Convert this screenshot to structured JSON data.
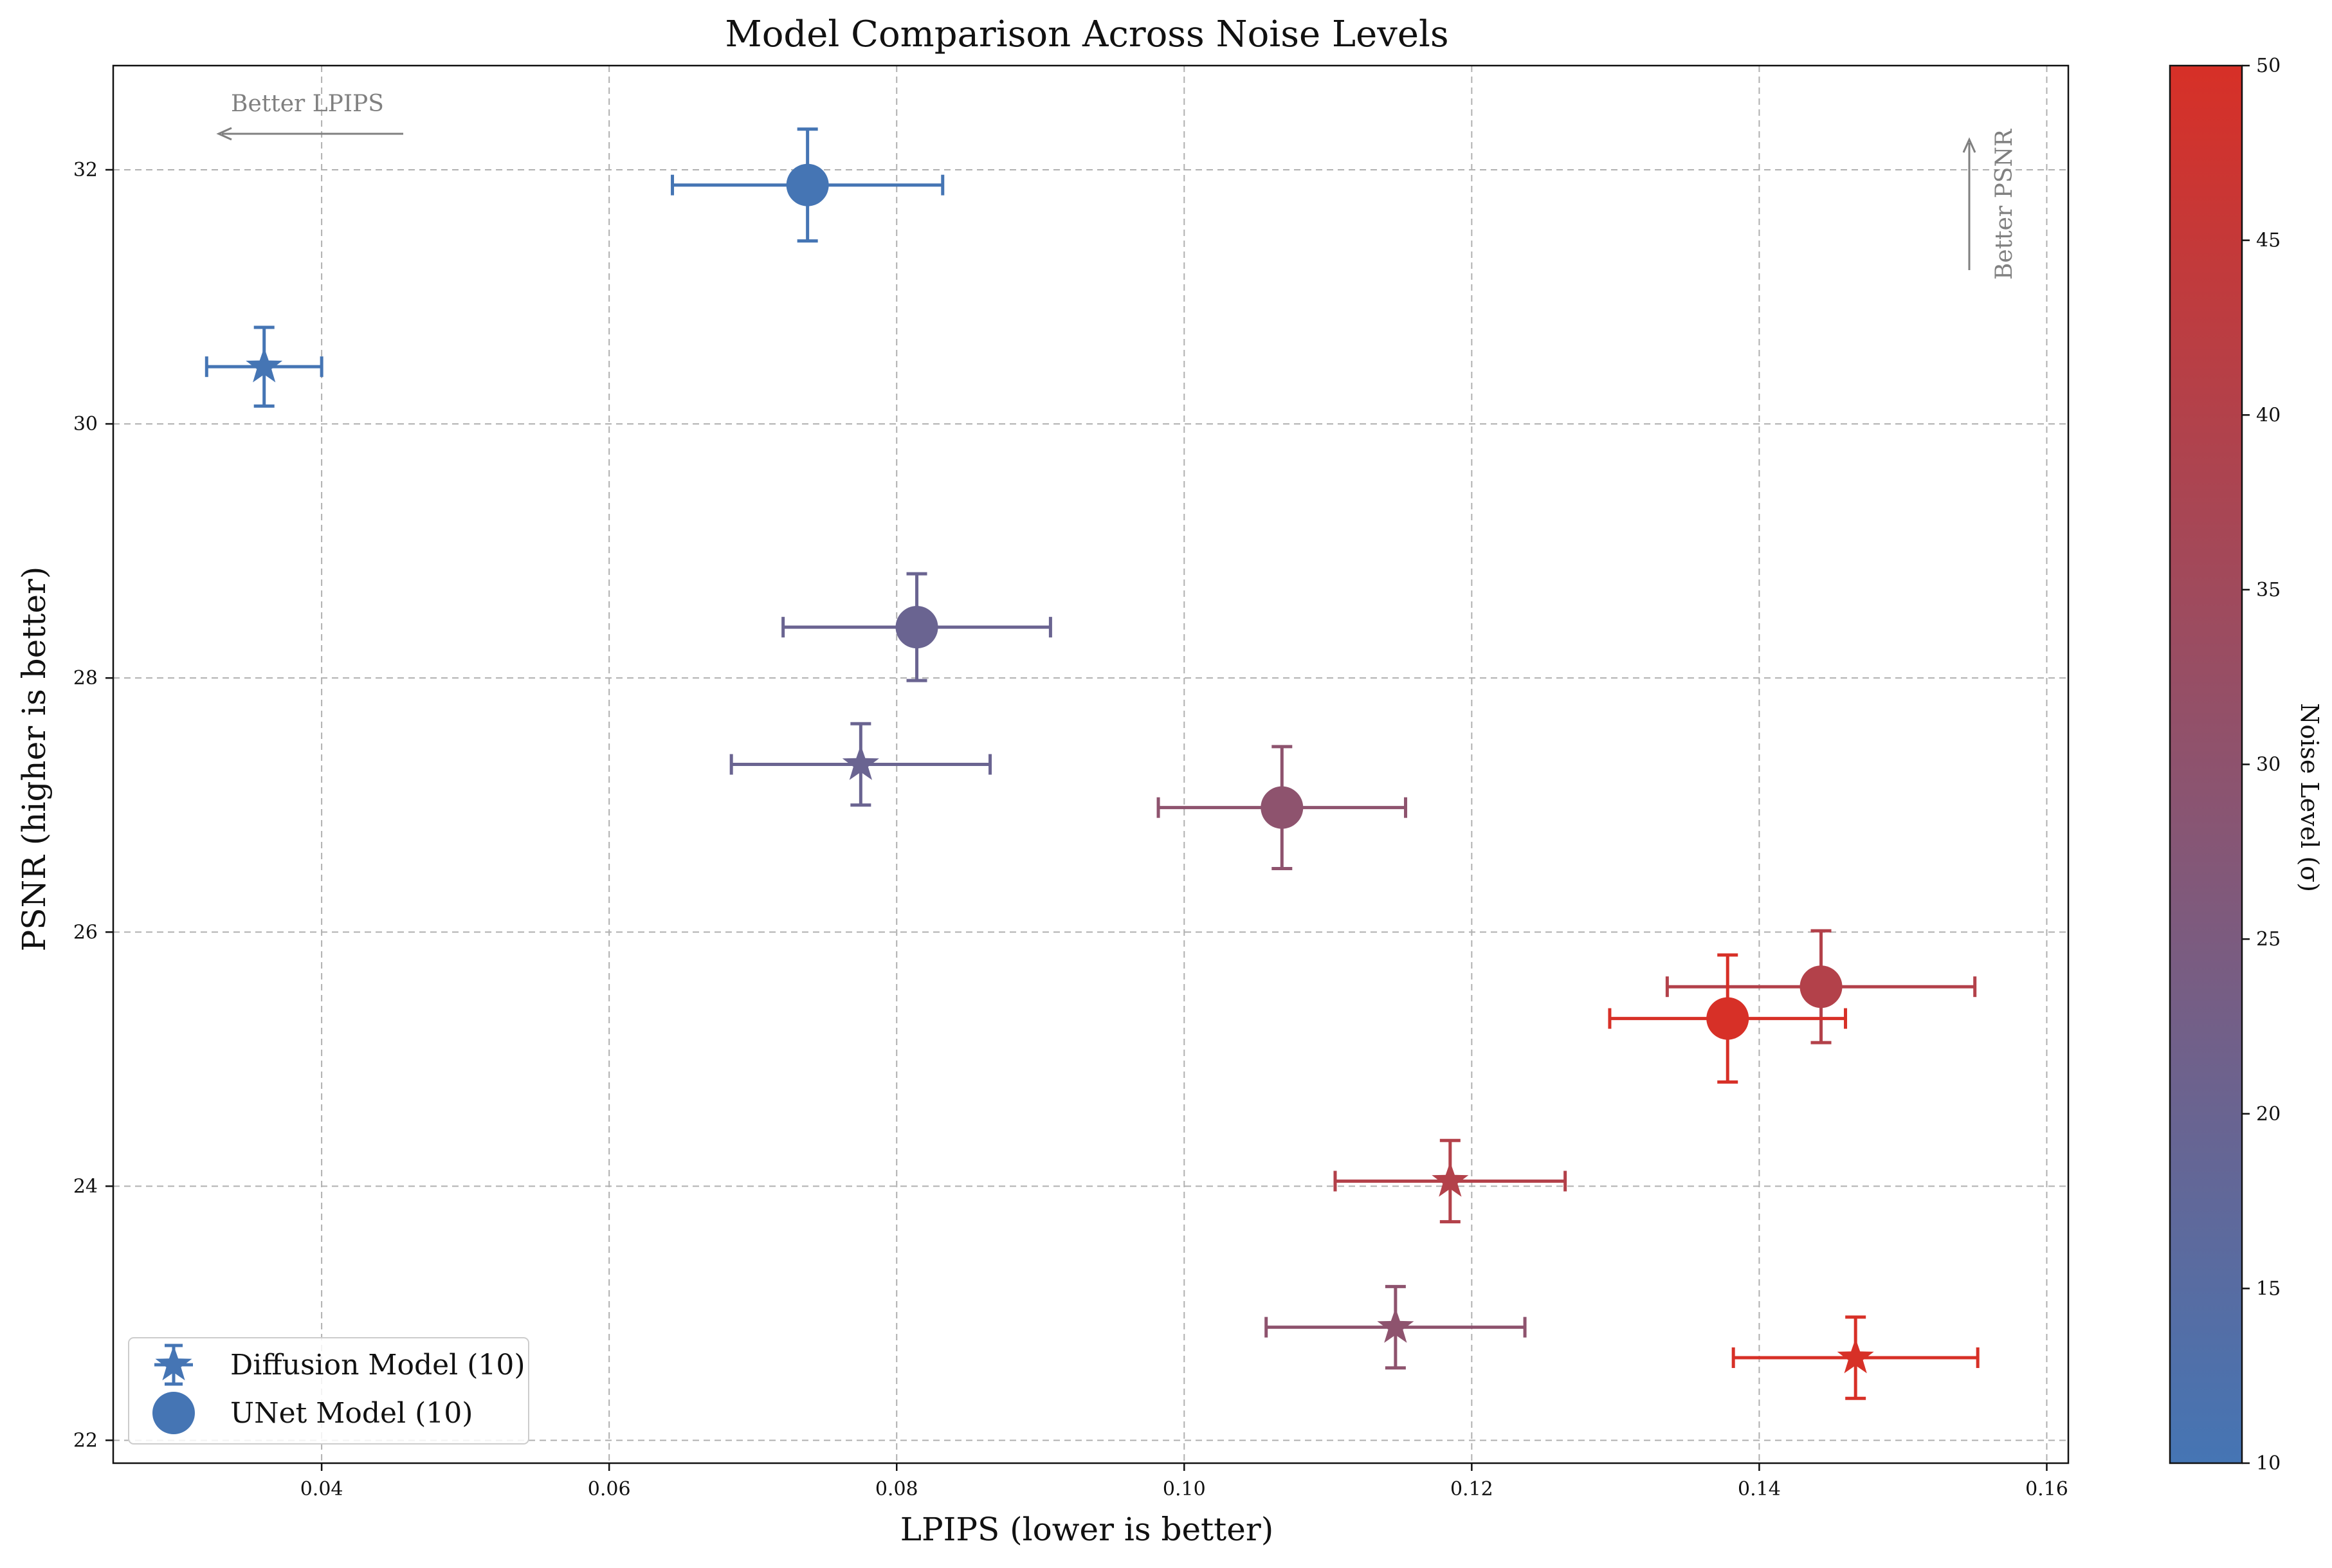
{
  "chart_data": {
    "type": "scatter",
    "title": "Model Comparison Across Noise Levels",
    "xlabel": "LPIPS (lower is better)",
    "ylabel": "PSNR (higher is better)",
    "xlim": [
      0.0255,
      0.1615
    ],
    "ylim": [
      21.82,
      32.82
    ],
    "xticks": [
      0.04,
      0.06,
      0.08,
      0.1,
      0.12,
      0.14,
      0.16
    ],
    "xtick_labels": [
      "0.04",
      "0.06",
      "0.08",
      "0.10",
      "0.12",
      "0.14",
      "0.16"
    ],
    "yticks": [
      22,
      24,
      26,
      28,
      30,
      32
    ],
    "ytick_labels": [
      "22",
      "24",
      "26",
      "28",
      "30",
      "32"
    ],
    "grid": true,
    "legend_position": "bottom-left",
    "colormap": {
      "label": "Noise Level (σ)",
      "min": 10,
      "max": 50,
      "ticks": [
        10,
        15,
        20,
        25,
        30,
        35,
        40,
        45,
        50
      ],
      "tick_labels": [
        "10",
        "15",
        "20",
        "25",
        "30",
        "35",
        "40",
        "45",
        "50"
      ],
      "color_low": "#4575b4",
      "color_high": "#d73027"
    },
    "series": [
      {
        "name": "Diffusion Model (10)",
        "marker": "star",
        "points": [
          {
            "x": 0.036,
            "y": 30.45,
            "xerr": 0.004,
            "yerr": 0.31,
            "noise": 10
          },
          {
            "x": 0.0775,
            "y": 27.32,
            "xerr": 0.009,
            "yerr": 0.32,
            "noise": 20
          },
          {
            "x": 0.1147,
            "y": 22.89,
            "xerr": 0.009,
            "yerr": 0.32,
            "noise": 30
          },
          {
            "x": 0.1185,
            "y": 24.04,
            "xerr": 0.008,
            "yerr": 0.32,
            "noise": 40
          },
          {
            "x": 0.1467,
            "y": 22.65,
            "xerr": 0.0085,
            "yerr": 0.32,
            "noise": 50
          }
        ]
      },
      {
        "name": "UNet Model (10)",
        "marker": "circle",
        "points": [
          {
            "x": 0.0738,
            "y": 31.88,
            "xerr": 0.0094,
            "yerr": 0.44,
            "noise": 10
          },
          {
            "x": 0.0814,
            "y": 28.4,
            "xerr": 0.0093,
            "yerr": 0.42,
            "noise": 20
          },
          {
            "x": 0.1068,
            "y": 26.98,
            "xerr": 0.0086,
            "yerr": 0.48,
            "noise": 30
          },
          {
            "x": 0.1443,
            "y": 25.57,
            "xerr": 0.0107,
            "yerr": 0.44,
            "noise": 40
          },
          {
            "x": 0.1378,
            "y": 25.32,
            "xerr": 0.0082,
            "yerr": 0.5,
            "noise": 50
          }
        ]
      }
    ],
    "annotations": [
      {
        "text": "Better LPIPS",
        "direction": "left"
      },
      {
        "text": "Better PSNR",
        "direction": "up"
      }
    ]
  }
}
